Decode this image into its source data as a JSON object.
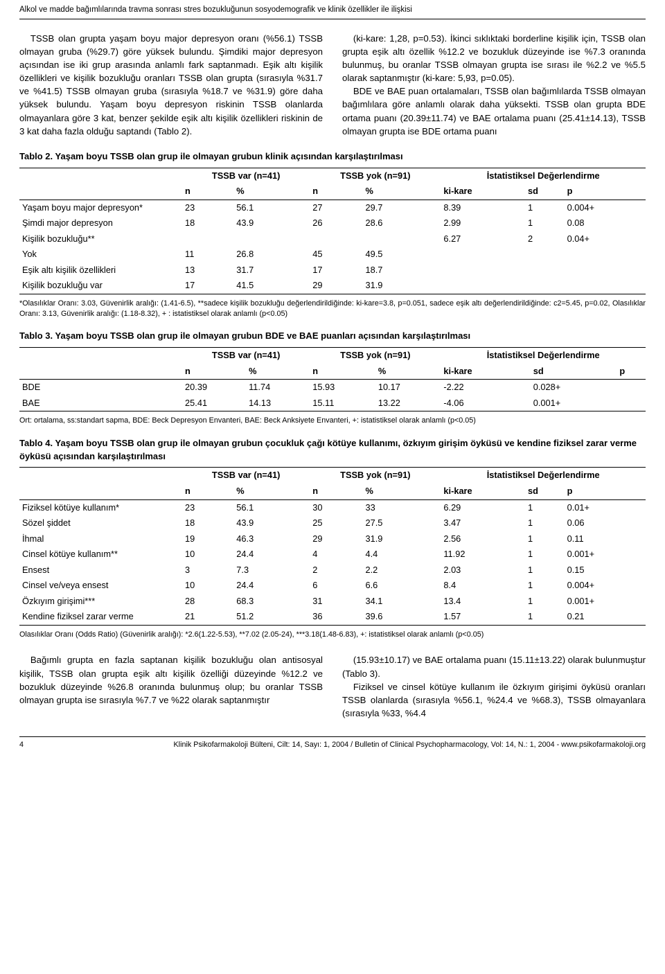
{
  "header": "Alkol ve madde bağımlılarında travma sonrası stres bozukluğunun sosyodemografik ve klinik özellikler ile ilişkisi",
  "para_left": "TSSB olan grupta yaşam boyu major depresyon oranı (%56.1) TSSB olmayan gruba (%29.7) göre yüksek bulundu. Şimdiki major depresyon açısından ise iki grup arasında anlamlı fark saptanmadı. Eşik altı kişilik özellikleri ve kişilik bozukluğu oranları TSSB olan grupta (sırasıyla %31.7 ve %41.5) TSSB olmayan gruba (sırasıyla %18.7 ve %31.9) göre daha yüksek bulundu. Yaşam boyu depresyon riskinin TSSB olanlarda olmayanlara göre 3 kat, benzer şekilde eşik altı kişilik özellikleri riskinin de 3 kat daha fazla olduğu saptandı (Tablo 2).",
  "para_right": "(ki-kare: 1,28, p=0.53). İkinci sıklıktaki borderline kişilik için, TSSB olan grupta eşik altı özellik %12.2 ve bozukluk düzeyinde ise %7.3 oranında bulunmuş, bu oranlar TSSB olmayan grupta ise sırası ile %2.2 ve %5.5 olarak saptanmıştır (ki-kare: 5,93, p=0.05).",
  "para_right2": "BDE ve BAE puan ortalamaları, TSSB olan bağımlılarda TSSB olmayan bağımlılara göre anlamlı olarak daha yüksekti. TSSB olan grupta BDE ortama puanı (20.39±11.74) ve BAE ortalama puanı (25.41±14.13), TSSB olmayan grupta ise BDE ortama puanı",
  "t2": {
    "caption": "Tablo 2. Yaşam boyu TSSB olan grup ile olmayan grubun klinik açısından karşılaştırılması",
    "h1": "TSSB var (n=41)",
    "h2": "TSSB yok (n=91)",
    "h3": "İstatistiksel Değerlendirme",
    "c_n": "n",
    "c_p": "%",
    "c_k": "ki-kare",
    "c_sd": "sd",
    "c_pv": "p",
    "rows": [
      {
        "l": "Yaşam boyu major depresyon*",
        "n1": "23",
        "p1": "56.1",
        "n2": "27",
        "p2": "29.7",
        "k": "8.39",
        "sd": "1",
        "pv": "0.004+"
      },
      {
        "l": "Şimdi major depresyon",
        "n1": "18",
        "p1": "43.9",
        "n2": "26",
        "p2": "28.6",
        "k": "2.99",
        "sd": "1",
        "pv": "0.08"
      },
      {
        "l": "Kişilik bozukluğu**",
        "n1": "",
        "p1": "",
        "n2": "",
        "p2": "",
        "k": "6.27",
        "sd": "2",
        "pv": "0.04+"
      },
      {
        "l": "Yok",
        "n1": "11",
        "p1": "26.8",
        "n2": "45",
        "p2": "49.5",
        "k": "",
        "sd": "",
        "pv": ""
      },
      {
        "l": "Eşik altı kişilik özellikleri",
        "n1": "13",
        "p1": "31.7",
        "n2": "17",
        "p2": "18.7",
        "k": "",
        "sd": "",
        "pv": ""
      },
      {
        "l": "Kişilik bozukluğu var",
        "n1": "17",
        "p1": "41.5",
        "n2": "29",
        "p2": "31.9",
        "k": "",
        "sd": "",
        "pv": ""
      }
    ],
    "foot": "*Olasılıklar Oranı: 3.03, Güvenirlik aralığı: (1.41-6.5), **sadece kişilik bozukluğu değerlendirildiğinde: ki-kare=3.8, p=0.051, sadece eşik altı değerlendirildiğinde: c2=5.45, p=0.02, Olasılıklar Oranı: 3.13, Güvenirlik aralığı: (1.18-8.32), + : istatistiksel olarak anlamlı (p<0.05)"
  },
  "t3": {
    "caption": "Tablo 3. Yaşam boyu TSSB olan grup ile olmayan grubun BDE ve BAE puanları açısından karşılaştırılması",
    "h1": "TSSB var (n=41)",
    "h2": "TSSB yok (n=91)",
    "h3": "İstatistiksel Değerlendirme",
    "c_n": "n",
    "c_p": "%",
    "c_k": "ki-kare",
    "c_sd": "sd",
    "c_pv": "p",
    "rows": [
      {
        "l": "BDE",
        "n1": "20.39",
        "p1": "11.74",
        "n2": "15.93",
        "p2": "10.17",
        "k": "-2.22",
        "sd": "0.028+",
        "pv": ""
      },
      {
        "l": "BAE",
        "n1": "25.41",
        "p1": "14.13",
        "n2": "15.11",
        "p2": "13.22",
        "k": "-4.06",
        "sd": "0.001+",
        "pv": ""
      }
    ],
    "foot": "Ort: ortalama, ss:standart sapma, BDE: Beck Depresyon Envanteri, BAE: Beck Anksiyete Envanteri, +: istatistiksel olarak anlamlı (p<0.05)"
  },
  "t4": {
    "caption": "Tablo 4. Yaşam boyu TSSB olan grup ile olmayan grubun çocukluk çağı kötüye kullanımı, özkıyım girişim öyküsü ve kendine fiziksel zarar verme öyküsü açısından karşılaştırılması",
    "h1": "TSSB var (n=41)",
    "h2": "TSSB yok (n=91)",
    "h3": "İstatistiksel Değerlendirme",
    "c_n": "n",
    "c_p": "%",
    "c_k": "ki-kare",
    "c_sd": "sd",
    "c_pv": "p",
    "rows": [
      {
        "l": "Fiziksel kötüye kullanım*",
        "n1": "23",
        "p1": "56.1",
        "n2": "30",
        "p2": "33",
        "k": "6.29",
        "sd": "1",
        "pv": "0.01+"
      },
      {
        "l": "Sözel şiddet",
        "n1": "18",
        "p1": "43.9",
        "n2": "25",
        "p2": "27.5",
        "k": "3.47",
        "sd": "1",
        "pv": "0.06"
      },
      {
        "l": "İhmal",
        "n1": "19",
        "p1": "46.3",
        "n2": "29",
        "p2": "31.9",
        "k": "2.56",
        "sd": "1",
        "pv": "0.11"
      },
      {
        "l": "Cinsel kötüye kullanım**",
        "n1": "10",
        "p1": "24.4",
        "n2": "4",
        "p2": "4.4",
        "k": "11.92",
        "sd": "1",
        "pv": "0.001+"
      },
      {
        "l": "Ensest",
        "n1": "3",
        "p1": "7.3",
        "n2": "2",
        "p2": "2.2",
        "k": "2.03",
        "sd": "1",
        "pv": "0.15"
      },
      {
        "l": "Cinsel ve/veya ensest",
        "n1": "10",
        "p1": "24.4",
        "n2": "6",
        "p2": "6.6",
        "k": "8.4",
        "sd": "1",
        "pv": "0.004+"
      },
      {
        "l": "Özkıyım girişimi***",
        "n1": "28",
        "p1": "68.3",
        "n2": "31",
        "p2": "34.1",
        "k": "13.4",
        "sd": "1",
        "pv": "0.001+"
      },
      {
        "l": "Kendine fiziksel zarar verme",
        "n1": "21",
        "p1": "51.2",
        "n2": "36",
        "p2": "39.6",
        "k": "1.57",
        "sd": "1",
        "pv": "0.21"
      }
    ],
    "foot": "Olasılıklar Oranı (Odds Ratio) (Güvenirlik aralığı): *2.6(1.22-5.53), **7.02 (2.05-24), ***3.18(1.48-6.83), +: istatistiksel olarak anlamlı (p<0.05)"
  },
  "bot_left": "Bağımlı grupta en fazla saptanan kişilik bozukluğu olan antisosyal kişilik, TSSB olan grupta eşik altı kişilik özelliği düzeyinde %12.2 ve bozukluk düzeyinde %26.8 oranında bulunmuş olup; bu oranlar TSSB olmayan grupta ise sırasıyla %7.7 ve %22 olarak saptanmıştır",
  "bot_right": "(15.93±10.17) ve BAE ortalama puanı (15.11±13.22) olarak bulunmuştur (Tablo 3).",
  "bot_right2": "Fiziksel ve cinsel kötüye kullanım ile özkıyım girişimi öyküsü oranları TSSB olanlarda (sırasıyla %56.1, %24.4 ve %68.3), TSSB olmayanlara (sırasıyla %33, %4.4",
  "footer_page": "4",
  "footer_text": "Klinik Psikofarmakoloji Bülteni, Cilt: 14, Sayı: 1, 2004 / Bulletin of Clinical Psychopharmacology, Vol: 14, N.: 1, 2004 - www.psikofarmakoloji.org"
}
